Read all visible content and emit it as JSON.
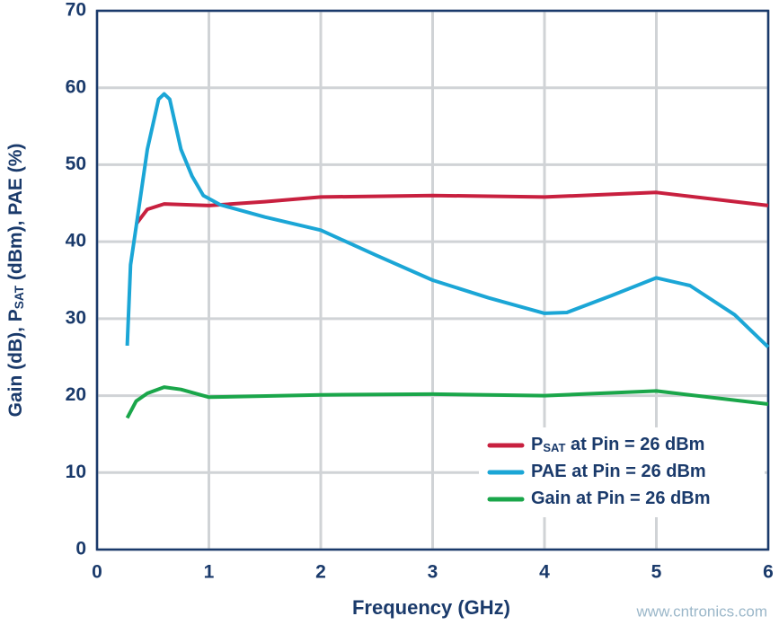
{
  "chart_data": {
    "type": "line",
    "xlabel": "Frequency  (GHz)",
    "ylabel": [
      "Gain (dB), P",
      "SAT",
      " (dBm), PAE (%)"
    ],
    "xlim": [
      0,
      6
    ],
    "xticks": [
      0,
      1,
      2,
      3,
      4,
      5,
      6
    ],
    "ylim": [
      0,
      70
    ],
    "yticks": [
      0,
      10,
      20,
      30,
      40,
      50,
      60,
      70
    ],
    "grid": true,
    "legend": "lower right",
    "series": [
      {
        "name": [
          "P",
          "SAT",
          " at Pin = 26 dBm"
        ],
        "color": "#c8203f",
        "x": [
          0.35,
          0.45,
          0.6,
          0.8,
          1.0,
          1.5,
          2,
          3,
          4,
          5,
          6
        ],
        "values": [
          42.3,
          44.2,
          44.9,
          44.8,
          44.7,
          45.2,
          45.8,
          46.0,
          45.8,
          46.4,
          44.7
        ]
      },
      {
        "name": [
          "PAE at Pin = 26 dBm"
        ],
        "color": "#1ba6d6",
        "x": [
          0.27,
          0.3,
          0.35,
          0.45,
          0.55,
          0.6,
          0.65,
          0.75,
          0.85,
          0.95,
          1.1,
          1.5,
          2,
          2.5,
          3,
          3.5,
          4,
          4.2,
          4.6,
          5,
          5.3,
          5.7,
          6
        ],
        "values": [
          26.5,
          37,
          42,
          52,
          58.5,
          59.2,
          58.5,
          52,
          48.5,
          46,
          44.8,
          43.2,
          41.5,
          38.2,
          35,
          32.7,
          30.7,
          30.8,
          33,
          35.3,
          34.3,
          30.5,
          26.3
        ]
      },
      {
        "name": [
          "Gain at Pin = 26 dBm"
        ],
        "color": "#1aa64a",
        "x": [
          0.27,
          0.35,
          0.45,
          0.6,
          0.75,
          1.0,
          2,
          3,
          4,
          5,
          6
        ],
        "values": [
          17.1,
          19.3,
          20.3,
          21.1,
          20.8,
          19.8,
          20.1,
          20.2,
          20.0,
          20.6,
          18.9
        ]
      }
    ],
    "watermark": "www.cntronics.com"
  }
}
